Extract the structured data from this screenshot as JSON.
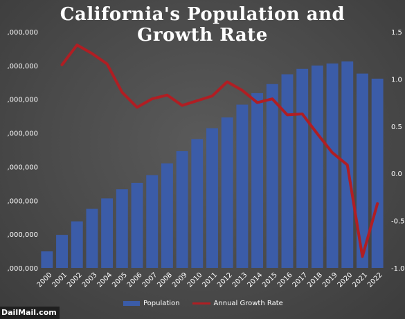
{
  "chart_data": {
    "type": "bar",
    "title_line1": "California's Population and",
    "title_line2": "Growth Rate",
    "categories": [
      "2000",
      "2001",
      "2002",
      "2003",
      "2004",
      "2005",
      "2006",
      "2007",
      "2008",
      "2009",
      "2010",
      "2011",
      "2012",
      "2013",
      "2014",
      "2015",
      "2016",
      "2017",
      "2018",
      "2019",
      "2020",
      "2021",
      "2022"
    ],
    "series": [
      {
        "name": "Population",
        "type": "bar",
        "axis": "left",
        "values": [
          33990000,
          34480000,
          34880000,
          35250000,
          35560000,
          35830000,
          36020000,
          36250000,
          36600000,
          36960000,
          37320000,
          37640000,
          37960000,
          38340000,
          38680000,
          38950000,
          39240000,
          39400000,
          39500000,
          39560000,
          39620000,
          39260000,
          39110000
        ]
      },
      {
        "name": "Annual Growth Rate",
        "type": "line",
        "axis": "right",
        "values": [
          null,
          1.15,
          1.36,
          1.27,
          1.16,
          0.86,
          0.7,
          0.79,
          0.83,
          0.72,
          0.77,
          0.82,
          0.97,
          0.88,
          0.75,
          0.79,
          0.62,
          0.63,
          0.42,
          0.22,
          0.09,
          -0.88,
          -0.32
        ]
      }
    ],
    "y_left": {
      "ylim": [
        33500000,
        40500000
      ],
      "ticks": [
        33500000,
        34000000,
        34500000,
        35000000,
        35500000,
        36000000,
        36500000,
        37000000,
        37500000,
        38000000,
        38500000,
        39000000,
        39500000,
        40000000,
        40500000
      ],
      "tick_labels": [
        ",000,000",
        ",000,000",
        ",000,000",
        ",000,000",
        ",000,000",
        ",000,000",
        ",000,000",
        ",000,000",
        ",000,000",
        ",000,000",
        ",000,000",
        ",000,000",
        ",000,000",
        ",000,000",
        ",000,000"
      ],
      "visible_ticks": [
        0,
        2,
        4,
        6,
        8,
        10,
        12,
        14
      ]
    },
    "y_right": {
      "ylim": [
        -1.0,
        1.5
      ],
      "ticks": [
        -1.0,
        -0.5,
        0.0,
        0.5,
        1.0,
        1.5
      ],
      "tick_labels": [
        "-1.0",
        "-0.5",
        "0.0",
        "0.5",
        "1.0",
        "1.5"
      ]
    },
    "grid": false,
    "legend_position": "bottom",
    "colors": {
      "bar": "#3b5ca8",
      "line": "#b01e23",
      "text": "#ffffff"
    }
  },
  "legend": {
    "population": "Population",
    "growth": "Annual Growth Rate"
  },
  "watermark": "DailMail.com"
}
